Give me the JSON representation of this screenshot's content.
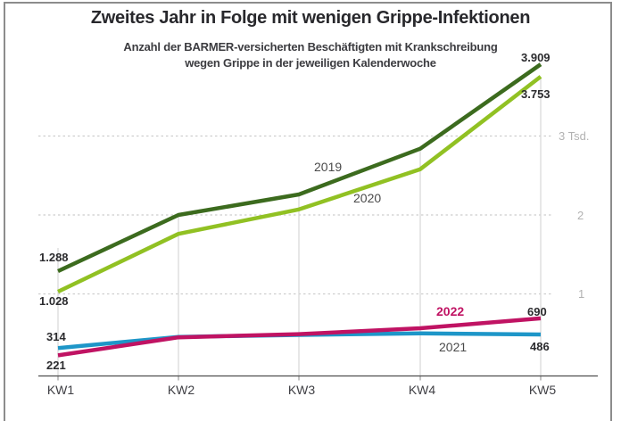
{
  "title": "Zweites Jahr in Folge mit wenigen Grippe-Infektionen",
  "subtitle_line1": "Anzahl der BARMER-versicherten Beschäftigten mit Krankschreibung",
  "subtitle_line2": "wegen Grippe in der jeweiligen Kalenderwoche",
  "colors": {
    "title": "#28282c",
    "axis": "#4d4d4d",
    "gridline": "#cdcdcd",
    "grid_label": "#b2b2b2"
  },
  "chart_data": {
    "type": "line",
    "categories": [
      "KW1",
      "KW2",
      "KW3",
      "KW4",
      "KW5"
    ],
    "series": [
      {
        "name": "2019",
        "color": "#3c6b1e",
        "values": [
          1288,
          2000,
          2260,
          2840,
          3909
        ],
        "first_label": "1.288",
        "last_label": "3.909"
      },
      {
        "name": "2020",
        "color": "#91c123",
        "values": [
          1028,
          1760,
          2070,
          2580,
          3753
        ],
        "first_label": "1.028",
        "last_label": "3.753"
      },
      {
        "name": "2021",
        "color": "#1e96c8",
        "values": [
          314,
          455,
          480,
          500,
          486
        ],
        "first_label": "314",
        "last_label": "486"
      },
      {
        "name": "2022",
        "color": "#c01363",
        "values": [
          221,
          450,
          490,
          565,
          690
        ],
        "first_label": "221",
        "last_label": "690"
      }
    ],
    "ylim": [
      0,
      4200
    ],
    "gridlines": {
      "values": [
        1000,
        2000,
        3000
      ],
      "labels": [
        "1",
        "2",
        "3 Tsd."
      ]
    },
    "legend_position": "inline",
    "grid": "horizontal-dashed"
  }
}
